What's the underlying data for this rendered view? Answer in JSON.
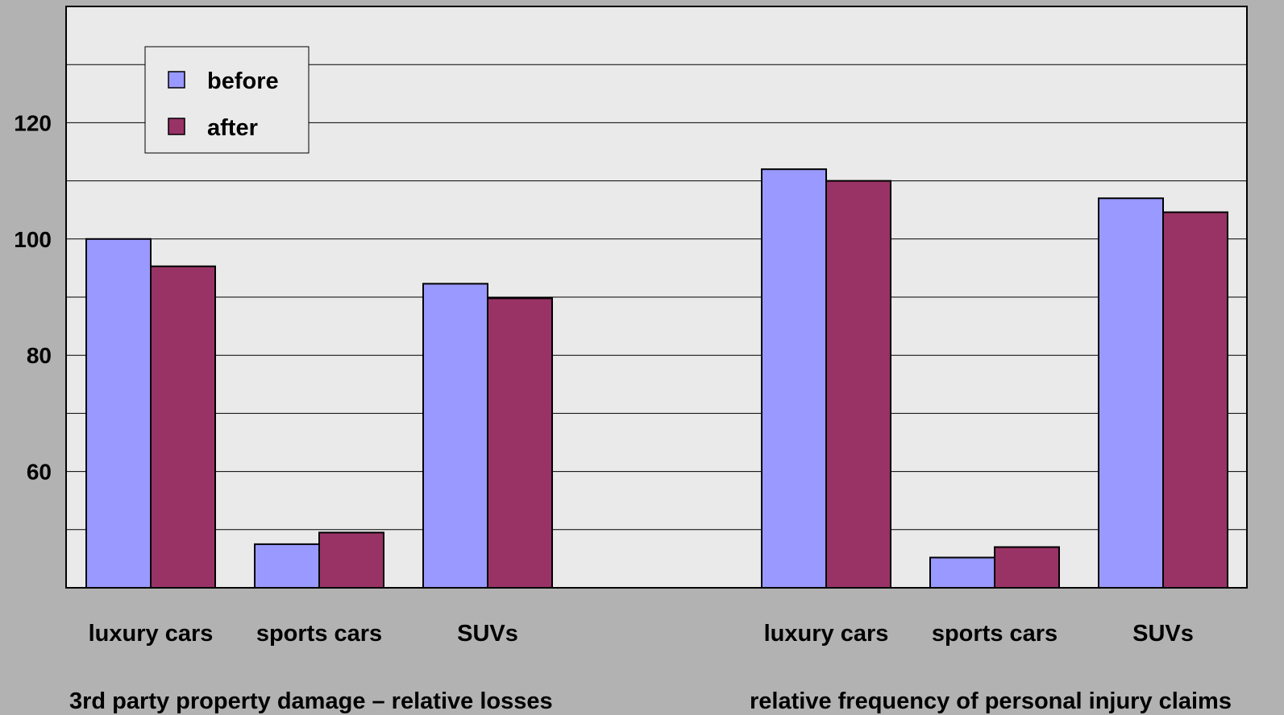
{
  "chart_data": {
    "type": "bar",
    "groups": [
      {
        "label": "3rd party property damage – relative losses",
        "categories": [
          "luxury cars",
          "sports cars",
          "SUVs"
        ]
      },
      {
        "label": "relative frequency of personal injury claims",
        "categories": [
          "luxury cars",
          "sports cars",
          "SUVs"
        ]
      }
    ],
    "series": [
      {
        "name": "before",
        "color": "#9999ff",
        "values": [
          100,
          47.5,
          92.3,
          112,
          45.2,
          107
        ]
      },
      {
        "name": "after",
        "color": "#993366",
        "values": [
          95.3,
          49.5,
          89.8,
          110,
          47,
          104.6
        ]
      }
    ],
    "yticks": [
      60,
      80,
      100,
      120
    ],
    "ylim": [
      40,
      140
    ],
    "grid": true,
    "legend_position": "top-left",
    "plot_background": "#eaeaea",
    "page_background": "#b2b2b2"
  }
}
